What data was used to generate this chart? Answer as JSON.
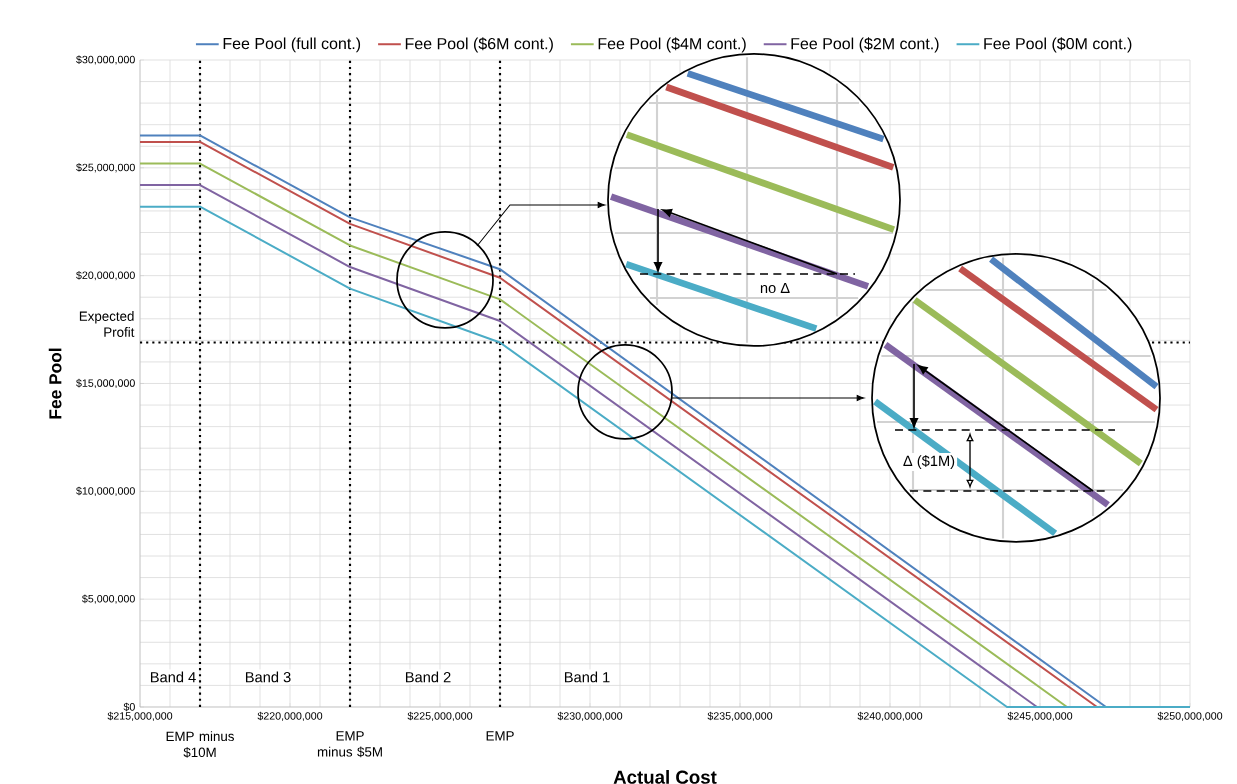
{
  "chart_data": {
    "type": "line",
    "xlabel": "Actual Cost",
    "ylabel": "Fee Pool",
    "xlim": [
      215000000,
      250000000
    ],
    "ylim": [
      0,
      30000000
    ],
    "xticks": [
      {
        "value": 215000000,
        "label": "$215,000,000"
      },
      {
        "value": 220000000,
        "label": "$220,000,000"
      },
      {
        "value": 225000000,
        "label": "$225,000,000"
      },
      {
        "value": 230000000,
        "label": "$230,000,000"
      },
      {
        "value": 235000000,
        "label": "$235,000,000"
      },
      {
        "value": 240000000,
        "label": "$240,000,000"
      },
      {
        "value": 245000000,
        "label": "$245,000,000"
      },
      {
        "value": 250000000,
        "label": "$250,000,000"
      }
    ],
    "yticks": [
      {
        "value": 0,
        "label": "$0"
      },
      {
        "value": 5000000,
        "label": "$5,000,000"
      },
      {
        "value": 10000000,
        "label": "$10,000,000"
      },
      {
        "value": 15000000,
        "label": "$15,000,000"
      },
      {
        "value": 20000000,
        "label": "$20,000,000"
      },
      {
        "value": 25000000,
        "label": "$25,000,000"
      },
      {
        "value": 30000000,
        "label": "$30,000,000"
      }
    ],
    "series": [
      {
        "name": "Fee Pool (full cont.)",
        "color": "#4f81bd",
        "x": [
          215000000,
          217000000,
          222000000,
          227000000,
          247200000,
          250000000
        ],
        "values": [
          26500000,
          26500000,
          22700000,
          20300000,
          0,
          0
        ]
      },
      {
        "name": "Fee Pool ($6M cont.)",
        "color": "#c0504d",
        "x": [
          215000000,
          217000000,
          222000000,
          227000000,
          246900000,
          250000000
        ],
        "values": [
          26200000,
          26200000,
          22400000,
          19900000,
          0,
          0
        ]
      },
      {
        "name": "Fee Pool ($4M cont.)",
        "color": "#9bbb59",
        "x": [
          215000000,
          217000000,
          222000000,
          227000000,
          245900000,
          250000000
        ],
        "values": [
          25200000,
          25200000,
          21400000,
          18900000,
          0,
          0
        ]
      },
      {
        "name": "Fee Pool ($2M cont.)",
        "color": "#8064a2",
        "x": [
          215000000,
          217000000,
          222000000,
          227000000,
          244900000,
          250000000
        ],
        "values": [
          24200000,
          24200000,
          20400000,
          17900000,
          0,
          0
        ]
      },
      {
        "name": "Fee Pool ($0M cont.)",
        "color": "#4bacc6",
        "x": [
          215000000,
          217000000,
          222000000,
          227000000,
          243900000,
          250000000
        ],
        "values": [
          23200000,
          23200000,
          19400000,
          16900000,
          0,
          0
        ]
      }
    ],
    "ref_lines": [
      {
        "axis": "x",
        "value": 217000000,
        "label": "EMP minus $10M",
        "color": "#000000",
        "line_style": "dotted"
      },
      {
        "axis": "x",
        "value": 222000000,
        "label": "EMP minus $5M",
        "color": "#000000",
        "line_style": "dotted"
      },
      {
        "axis": "x",
        "value": 227000000,
        "label": "EMP",
        "color": "#000000",
        "line_style": "dotted"
      },
      {
        "axis": "y",
        "value": 16900000,
        "label": "Expected Profit",
        "color": "#000000",
        "line_style": "dotted"
      }
    ],
    "annotations": [
      "Band 4",
      "Band 3",
      "Band 2",
      "Band 1",
      "no Δ",
      "Δ ($1M)"
    ],
    "grid": true,
    "legend": "top"
  }
}
